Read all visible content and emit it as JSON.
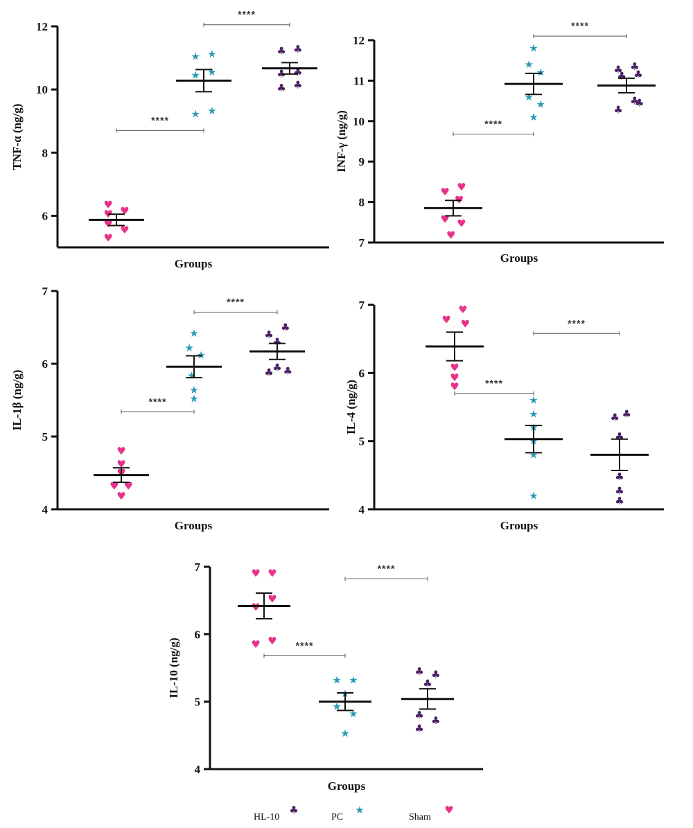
{
  "legend": {
    "items": [
      {
        "label": "HL-10",
        "key": "HL-10"
      },
      {
        "label": "PC",
        "key": "PC"
      },
      {
        "label": "Sham",
        "key": "Sham"
      }
    ]
  },
  "styles": {
    "Sham": {
      "color": "#e8318a",
      "icon": "heart-icon",
      "glyph": "♥"
    },
    "PC": {
      "color": "#2a9bb5",
      "icon": "star-icon",
      "glyph": "★"
    },
    "HL-10": {
      "color": "#4b1f63",
      "icon": "club-icon",
      "glyph": "♣"
    }
  },
  "chart_data": [
    {
      "type": "scatter",
      "ylabel": "TNF-α (ng/g)",
      "xlabel": "Groups",
      "ylim": [
        5,
        12
      ],
      "yticks": [
        "6",
        "8",
        "10",
        "12"
      ],
      "tick_values": [
        6,
        8,
        10,
        12
      ],
      "categories": [
        "Sham",
        "PC",
        "HL-10"
      ],
      "series": [
        {
          "group": "Sham",
          "mean": 5.87,
          "sem": 0.18,
          "points": [
            [
              -0.35,
              6.35
            ],
            [
              -0.35,
              6.05
            ],
            [
              0.35,
              6.15
            ],
            [
              -0.35,
              5.75
            ],
            [
              0.35,
              5.55
            ],
            [
              -0.35,
              5.3
            ]
          ]
        },
        {
          "group": "PC",
          "mean": 10.28,
          "sem": 0.35,
          "points": [
            [
              -0.35,
              11.05
            ],
            [
              0.35,
              11.12
            ],
            [
              -0.35,
              10.45
            ],
            [
              0.35,
              10.55
            ],
            [
              -0.35,
              9.22
            ],
            [
              0.35,
              9.32
            ]
          ]
        },
        {
          "group": "HL-10",
          "mean": 10.67,
          "sem": 0.18,
          "points": [
            [
              -0.35,
              11.22
            ],
            [
              0.35,
              11.28
            ],
            [
              -0.35,
              10.5
            ],
            [
              0.35,
              10.55
            ],
            [
              -0.35,
              10.05
            ],
            [
              0.35,
              10.15
            ]
          ]
        }
      ],
      "significance": [
        {
          "from": 0,
          "to": 1,
          "y": 8.7,
          "label": "****"
        },
        {
          "from": 1,
          "to": 2,
          "y": 12.05,
          "label": "****"
        }
      ]
    },
    {
      "type": "scatter",
      "ylabel": "INF-γ (ng/g)",
      "xlabel": "Groups",
      "ylim": [
        7,
        12
      ],
      "yticks": [
        "7",
        "8",
        "9",
        "10",
        "11",
        "12"
      ],
      "tick_values": [
        7,
        8,
        9,
        10,
        11,
        12
      ],
      "categories": [
        "Sham",
        "PC",
        "HL-10"
      ],
      "series": [
        {
          "group": "Sham",
          "mean": 7.85,
          "sem": 0.19,
          "points": [
            [
              -0.35,
              8.25
            ],
            [
              0.35,
              8.37
            ],
            [
              0.25,
              8.05
            ],
            [
              -0.35,
              7.57
            ],
            [
              0.35,
              7.47
            ],
            [
              -0.1,
              7.18
            ]
          ]
        },
        {
          "group": "PC",
          "mean": 10.92,
          "sem": 0.26,
          "points": [
            [
              0.0,
              11.8
            ],
            [
              -0.2,
              11.4
            ],
            [
              0.3,
              11.2
            ],
            [
              -0.2,
              10.6
            ],
            [
              0.3,
              10.42
            ],
            [
              0.0,
              10.1
            ]
          ]
        },
        {
          "group": "HL-10",
          "mean": 10.88,
          "sem": 0.18,
          "points": [
            [
              -0.35,
              11.27
            ],
            [
              0.35,
              11.35
            ],
            [
              -0.2,
              11.12
            ],
            [
              0.5,
              11.15
            ],
            [
              -0.35,
              10.28
            ],
            [
              0.35,
              10.5
            ],
            [
              0.55,
              10.45
            ]
          ]
        }
      ],
      "significance": [
        {
          "from": 0,
          "to": 1,
          "y": 9.68,
          "label": "****"
        },
        {
          "from": 1,
          "to": 2,
          "y": 12.1,
          "label": "****"
        }
      ]
    },
    {
      "type": "scatter",
      "ylabel": "IL-1β (ng/g)",
      "xlabel": "Groups",
      "ylim": [
        4,
        7
      ],
      "yticks": [
        "4",
        "5",
        "6",
        "7"
      ],
      "tick_values": [
        4,
        5,
        6,
        7
      ],
      "categories": [
        "Sham",
        "PC",
        "HL-10"
      ],
      "series": [
        {
          "group": "Sham",
          "mean": 4.47,
          "sem": 0.1,
          "points": [
            [
              0.0,
              4.8
            ],
            [
              0.0,
              4.62
            ],
            [
              0.0,
              4.5
            ],
            [
              -0.3,
              4.32
            ],
            [
              0.3,
              4.32
            ],
            [
              0.0,
              4.18
            ]
          ]
        },
        {
          "group": "PC",
          "mean": 5.96,
          "sem": 0.15,
          "points": [
            [
              0.0,
              6.42
            ],
            [
              -0.2,
              6.22
            ],
            [
              0.3,
              6.12
            ],
            [
              -0.1,
              5.84
            ],
            [
              0.0,
              5.64
            ],
            [
              0.0,
              5.52
            ]
          ]
        },
        {
          "group": "HL-10",
          "mean": 6.17,
          "sem": 0.11,
          "points": [
            [
              -0.35,
              6.4
            ],
            [
              0.35,
              6.5
            ],
            [
              0.0,
              6.3
            ],
            [
              -0.35,
              5.88
            ],
            [
              0.0,
              5.95
            ],
            [
              0.45,
              5.9
            ]
          ]
        }
      ],
      "significance": [
        {
          "from": 0,
          "to": 1,
          "y": 5.34,
          "label": "****"
        },
        {
          "from": 1,
          "to": 2,
          "y": 6.71,
          "label": "****"
        }
      ]
    },
    {
      "type": "scatter",
      "ylabel": "IL-4 (ng/g)",
      "xlabel": "Groups",
      "ylim": [
        4,
        7
      ],
      "yticks": [
        "4",
        "5",
        "6",
        "7"
      ],
      "tick_values": [
        4,
        5,
        6,
        7
      ],
      "categories": [
        "Sham",
        "PC",
        "HL-10"
      ],
      "series": [
        {
          "group": "Sham",
          "mean": 6.39,
          "sem": 0.21,
          "points": [
            [
              0.35,
              6.93
            ],
            [
              -0.35,
              6.78
            ],
            [
              0.45,
              6.72
            ],
            [
              0.0,
              6.08
            ],
            [
              0.0,
              5.93
            ],
            [
              0.0,
              5.8
            ]
          ]
        },
        {
          "group": "PC",
          "mean": 5.03,
          "sem": 0.2,
          "points": [
            [
              0.0,
              5.6
            ],
            [
              0.0,
              5.4
            ],
            [
              0.0,
              5.2
            ],
            [
              0.0,
              5.0
            ],
            [
              0.0,
              4.8
            ],
            [
              0.0,
              4.2
            ]
          ]
        },
        {
          "group": "HL-10",
          "mean": 4.8,
          "sem": 0.23,
          "points": [
            [
              -0.2,
              5.35
            ],
            [
              0.3,
              5.4
            ],
            [
              0.0,
              5.07
            ],
            [
              0.0,
              4.48
            ],
            [
              0.0,
              4.27
            ],
            [
              0.0,
              4.12
            ]
          ]
        }
      ],
      "significance": [
        {
          "from": 0,
          "to": 1,
          "y": 5.7,
          "label": "****"
        },
        {
          "from": 1,
          "to": 2,
          "y": 6.58,
          "label": "****"
        }
      ]
    },
    {
      "type": "scatter",
      "ylabel": "IL-10 (ng/g)",
      "xlabel": "Groups",
      "ylim": [
        4,
        7
      ],
      "yticks": [
        "4",
        "5",
        "6",
        "7"
      ],
      "tick_values": [
        4,
        5,
        6,
        7
      ],
      "categories": [
        "Sham",
        "PC",
        "HL-10"
      ],
      "series": [
        {
          "group": "Sham",
          "mean": 6.42,
          "sem": 0.19,
          "points": [
            [
              -0.35,
              6.9
            ],
            [
              0.35,
              6.9
            ],
            [
              0.35,
              6.52
            ],
            [
              -0.35,
              6.4
            ],
            [
              -0.35,
              5.85
            ],
            [
              0.35,
              5.9
            ]
          ]
        },
        {
          "group": "PC",
          "mean": 5.0,
          "sem": 0.13,
          "points": [
            [
              -0.35,
              5.32
            ],
            [
              0.35,
              5.32
            ],
            [
              0.0,
              5.12
            ],
            [
              -0.35,
              4.93
            ],
            [
              0.35,
              4.82
            ],
            [
              0.0,
              4.53
            ]
          ]
        },
        {
          "group": "HL-10",
          "mean": 5.04,
          "sem": 0.15,
          "points": [
            [
              -0.35,
              5.45
            ],
            [
              0.35,
              5.4
            ],
            [
              0.0,
              5.27
            ],
            [
              -0.35,
              4.8
            ],
            [
              0.35,
              4.72
            ],
            [
              -0.35,
              4.6
            ]
          ]
        }
      ],
      "significance": [
        {
          "from": 0,
          "to": 1,
          "y": 5.68,
          "label": "****"
        },
        {
          "from": 1,
          "to": 2,
          "y": 6.82,
          "label": "****"
        }
      ]
    }
  ]
}
